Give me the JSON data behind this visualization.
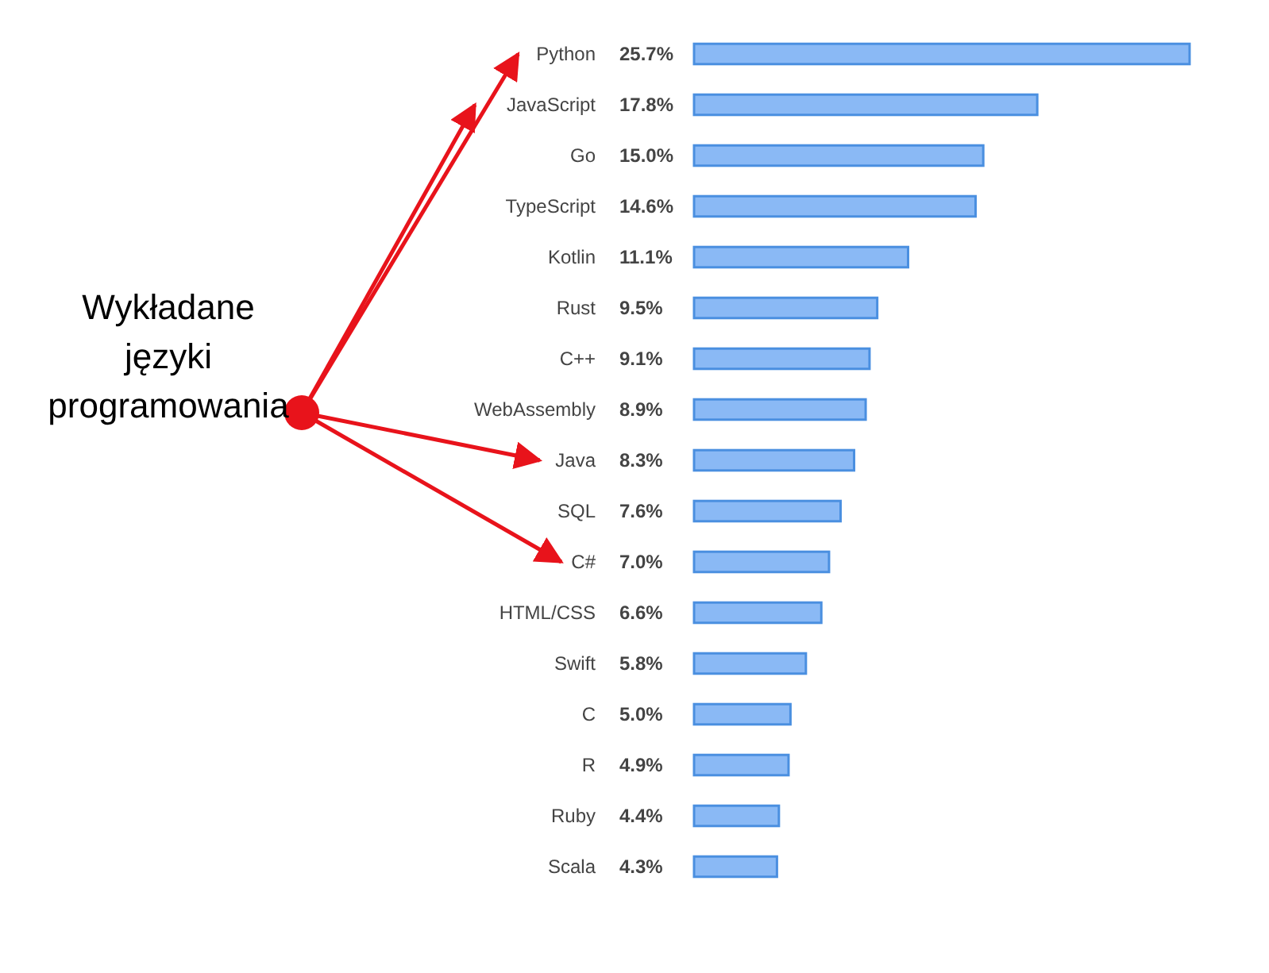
{
  "chart_data": {
    "type": "bar",
    "orientation": "horizontal",
    "categories": [
      "Python",
      "JavaScript",
      "Go",
      "TypeScript",
      "Kotlin",
      "Rust",
      "C++",
      "WebAssembly",
      "Java",
      "SQL",
      "C#",
      "HTML/CSS",
      "Swift",
      "C",
      "R",
      "Ruby",
      "Scala"
    ],
    "values": [
      25.7,
      17.8,
      15.0,
      14.6,
      11.1,
      9.5,
      9.1,
      8.9,
      8.3,
      7.6,
      7.0,
      6.6,
      5.8,
      5.0,
      4.9,
      4.4,
      4.3
    ],
    "value_labels": [
      "25.7%",
      "17.8%",
      "15.0%",
      "14.6%",
      "11.1%",
      "9.5%",
      "9.1%",
      "8.9%",
      "8.3%",
      "7.6%",
      "7.0%",
      "6.6%",
      "5.8%",
      "5.0%",
      "4.9%",
      "4.4%",
      "4.3%"
    ],
    "color": "#8ab9f5",
    "annotations": [
      "Wykładane języki programowania"
    ]
  }
}
